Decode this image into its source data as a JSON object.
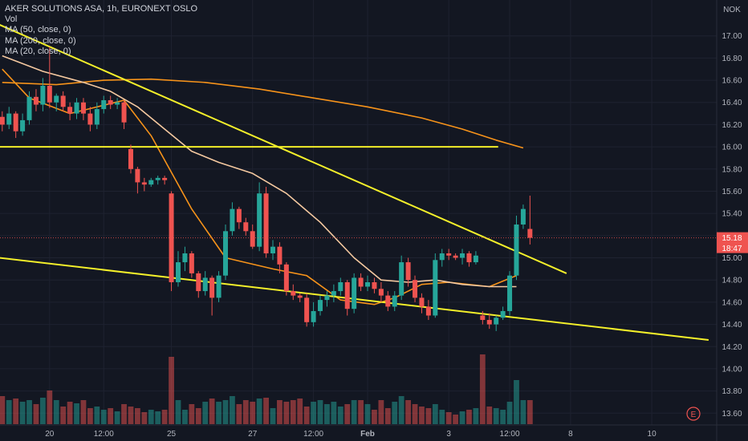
{
  "legend": {
    "title": "AKER SOLUTIONS ASA, 1h, EURONEXT OSLO",
    "vol": "Vol",
    "ma1": "MA (50, close, 0)",
    "ma2": "MA (200, close, 0)",
    "ma3": "MA (20, close, 0)"
  },
  "currency": "NOK",
  "price_tags": {
    "last": "15.18",
    "countdown": "18:47"
  },
  "earnings_marker": "E",
  "colors": {
    "background": "#131722",
    "up": "#26a69a",
    "down": "#ef5350",
    "trendline": "#f4f02a",
    "ma_orange": "#f7931a",
    "ma_light": "#f5c9a0",
    "grid": "#1e2230"
  },
  "chart_data": {
    "type": "candlestick",
    "y_ticks": [
      "13.60",
      "13.80",
      "14.00",
      "14.20",
      "14.40",
      "14.60",
      "14.80",
      "15.00",
      "15.20",
      "15.40",
      "15.60",
      "15.80",
      "16.00",
      "16.20",
      "16.40",
      "16.60",
      "16.80",
      "17.00"
    ],
    "y_range": [
      13.5,
      17.1
    ],
    "x_ticks": [
      {
        "label": "20",
        "i": 7
      },
      {
        "label": "12:00",
        "i": 15
      },
      {
        "label": "25",
        "i": 25
      },
      {
        "label": "27",
        "i": 37
      },
      {
        "label": "12:00",
        "i": 46
      },
      {
        "label": "Feb",
        "i": 54
      },
      {
        "label": "3",
        "i": 66
      },
      {
        "label": "12:00",
        "i": 75
      },
      {
        "label": "8",
        "i": 84
      },
      {
        "label": "10",
        "i": 96
      }
    ],
    "ohlc": [
      [
        16.27,
        16.32,
        16.14,
        16.2
      ],
      [
        16.2,
        16.36,
        16.16,
        16.3
      ],
      [
        16.3,
        16.32,
        16.08,
        16.14
      ],
      [
        16.14,
        16.3,
        16.1,
        16.24
      ],
      [
        16.24,
        16.5,
        16.2,
        16.45
      ],
      [
        16.45,
        16.52,
        16.32,
        16.38
      ],
      [
        16.38,
        16.62,
        16.32,
        16.55
      ],
      [
        16.55,
        16.9,
        16.35,
        16.4
      ],
      [
        16.4,
        16.48,
        16.32,
        16.46
      ],
      [
        16.46,
        16.5,
        16.32,
        16.36
      ],
      [
        16.36,
        16.4,
        16.24,
        16.3
      ],
      [
        16.3,
        16.44,
        16.25,
        16.4
      ],
      [
        16.4,
        16.44,
        16.24,
        16.3
      ],
      [
        16.3,
        16.36,
        16.14,
        16.2
      ],
      [
        16.2,
        16.4,
        16.16,
        16.34
      ],
      [
        16.34,
        16.46,
        16.3,
        16.42
      ],
      [
        16.42,
        16.46,
        16.34,
        16.38
      ],
      [
        16.38,
        16.44,
        16.34,
        16.4
      ],
      [
        16.4,
        16.42,
        16.16,
        16.22
      ],
      [
        15.98,
        16.02,
        15.76,
        15.8
      ],
      [
        15.8,
        15.82,
        15.58,
        15.68
      ],
      [
        15.68,
        15.72,
        15.6,
        15.66
      ],
      [
        15.66,
        15.72,
        15.64,
        15.7
      ],
      [
        15.7,
        15.74,
        15.66,
        15.72
      ],
      [
        15.72,
        15.74,
        15.66,
        15.7
      ],
      [
        15.58,
        15.6,
        14.7,
        14.78
      ],
      [
        14.78,
        15.06,
        14.74,
        14.96
      ],
      [
        14.96,
        15.1,
        14.88,
        15.04
      ],
      [
        15.04,
        15.06,
        14.82,
        14.86
      ],
      [
        14.86,
        14.88,
        14.64,
        14.7
      ],
      [
        14.7,
        14.88,
        14.66,
        14.82
      ],
      [
        14.82,
        14.84,
        14.48,
        14.64
      ],
      [
        14.64,
        14.88,
        14.6,
        14.84
      ],
      [
        14.84,
        15.3,
        14.8,
        15.24
      ],
      [
        15.24,
        15.5,
        15.2,
        15.44
      ],
      [
        15.44,
        15.46,
        15.26,
        15.32
      ],
      [
        15.32,
        15.36,
        15.2,
        15.24
      ],
      [
        15.24,
        15.3,
        15.08,
        15.1
      ],
      [
        15.1,
        15.68,
        15.06,
        15.58
      ],
      [
        15.58,
        15.64,
        15.0,
        15.04
      ],
      [
        15.04,
        15.16,
        14.98,
        15.1
      ],
      [
        15.1,
        15.14,
        14.86,
        14.94
      ],
      [
        14.94,
        14.96,
        14.66,
        14.7
      ],
      [
        14.7,
        14.76,
        14.62,
        14.66
      ],
      [
        14.66,
        14.68,
        14.6,
        14.64
      ],
      [
        14.64,
        14.68,
        14.38,
        14.42
      ],
      [
        14.42,
        14.6,
        14.38,
        14.52
      ],
      [
        14.52,
        14.66,
        14.48,
        14.62
      ],
      [
        14.62,
        14.7,
        14.56,
        14.66
      ],
      [
        14.66,
        14.76,
        14.6,
        14.7
      ],
      [
        14.7,
        14.82,
        14.66,
        14.78
      ],
      [
        14.78,
        14.8,
        14.48,
        14.54
      ],
      [
        14.54,
        14.86,
        14.5,
        14.82
      ],
      [
        14.82,
        14.86,
        14.7,
        14.74
      ],
      [
        14.74,
        14.84,
        14.7,
        14.78
      ],
      [
        14.78,
        14.82,
        14.68,
        14.72
      ],
      [
        14.72,
        14.78,
        14.6,
        14.66
      ],
      [
        14.66,
        14.7,
        14.52,
        14.56
      ],
      [
        14.56,
        14.7,
        14.52,
        14.66
      ],
      [
        14.66,
        15.02,
        14.62,
        14.96
      ],
      [
        14.96,
        15.0,
        14.74,
        14.8
      ],
      [
        14.8,
        14.84,
        14.6,
        14.64
      ],
      [
        14.64,
        14.68,
        14.5,
        14.56
      ],
      [
        14.56,
        14.62,
        14.44,
        14.48
      ],
      [
        14.48,
        15.04,
        14.46,
        14.98
      ],
      [
        14.98,
        15.08,
        14.92,
        15.04
      ],
      [
        15.04,
        15.08,
        14.98,
        15.02
      ],
      [
        15.02,
        15.04,
        14.98,
        15.0
      ],
      [
        15.0,
        15.08,
        14.94,
        15.04
      ],
      [
        15.04,
        15.06,
        14.92,
        14.96
      ],
      [
        14.96,
        15.06,
        14.94,
        15.02
      ],
      [
        14.48,
        14.52,
        14.4,
        14.44
      ],
      [
        14.44,
        14.5,
        14.36,
        14.4
      ],
      [
        14.4,
        14.48,
        14.34,
        14.46
      ],
      [
        14.46,
        14.56,
        14.44,
        14.52
      ],
      [
        14.52,
        14.88,
        14.48,
        14.84
      ],
      [
        14.84,
        15.38,
        14.8,
        15.3
      ],
      [
        15.3,
        15.48,
        15.26,
        15.44
      ],
      [
        15.26,
        15.56,
        15.12,
        15.18
      ]
    ],
    "volume": [
      0.35,
      0.3,
      0.32,
      0.28,
      0.3,
      0.25,
      0.33,
      0.42,
      0.3,
      0.22,
      0.28,
      0.26,
      0.3,
      0.2,
      0.22,
      0.18,
      0.2,
      0.16,
      0.25,
      0.22,
      0.2,
      0.15,
      0.18,
      0.16,
      0.18,
      0.84,
      0.3,
      0.18,
      0.25,
      0.2,
      0.28,
      0.32,
      0.28,
      0.3,
      0.35,
      0.25,
      0.3,
      0.28,
      0.32,
      0.33,
      0.2,
      0.3,
      0.28,
      0.3,
      0.32,
      0.22,
      0.28,
      0.3,
      0.25,
      0.28,
      0.22,
      0.25,
      0.3,
      0.3,
      0.25,
      0.18,
      0.3,
      0.2,
      0.28,
      0.35,
      0.3,
      0.25,
      0.22,
      0.2,
      0.25,
      0.18,
      0.15,
      0.12,
      0.16,
      0.18,
      0.2,
      0.87,
      0.22,
      0.2,
      0.18,
      0.28,
      0.55,
      0.3,
      0.3
    ],
    "series": [
      {
        "name": "MA (50, close, 0)",
        "style": "ma_orange",
        "points": [
          [
            0,
            16.7
          ],
          [
            4,
            16.44
          ],
          [
            10,
            16.3
          ],
          [
            18,
            16.42
          ],
          [
            22,
            16.1
          ],
          [
            28,
            15.44
          ],
          [
            33,
            15.0
          ],
          [
            40,
            14.9
          ],
          [
            45,
            14.84
          ],
          [
            50,
            14.62
          ],
          [
            55,
            14.58
          ],
          [
            58,
            14.64
          ],
          [
            62,
            14.76
          ],
          [
            66,
            14.78
          ],
          [
            72,
            14.74
          ],
          [
            76,
            14.84
          ]
        ]
      },
      {
        "name": "MA (200, close, 0)",
        "style": "ma_orange",
        "points": [
          [
            0,
            16.58
          ],
          [
            8,
            16.56
          ],
          [
            15,
            16.6
          ],
          [
            22,
            16.61
          ],
          [
            30,
            16.58
          ],
          [
            38,
            16.52
          ],
          [
            46,
            16.44
          ],
          [
            54,
            16.36
          ],
          [
            62,
            16.26
          ],
          [
            68,
            16.16
          ],
          [
            73,
            16.06
          ],
          [
            77,
            15.99
          ]
        ]
      },
      {
        "name": "MA (20, close, 0)",
        "style": "ma_light",
        "points": [
          [
            0,
            16.82
          ],
          [
            6,
            16.68
          ],
          [
            12,
            16.58
          ],
          [
            16,
            16.5
          ],
          [
            20,
            16.36
          ],
          [
            24,
            16.16
          ],
          [
            28,
            15.96
          ],
          [
            32,
            15.86
          ],
          [
            37,
            15.76
          ],
          [
            42,
            15.58
          ],
          [
            47,
            15.32
          ],
          [
            52,
            15.0
          ],
          [
            56,
            14.8
          ],
          [
            60,
            14.78
          ],
          [
            64,
            14.8
          ],
          [
            68,
            14.76
          ],
          [
            72,
            14.74
          ],
          [
            76,
            14.74
          ]
        ]
      }
    ],
    "trendlines": [
      {
        "from": [
          -0.4,
          17.1
        ],
        "to": [
          83.4,
          14.86
        ]
      },
      {
        "from": [
          -0.4,
          16.0
        ],
        "to": [
          73.3,
          16.0
        ]
      },
      {
        "from": [
          -0.4,
          15.0
        ],
        "to": [
          104.4,
          14.26
        ]
      }
    ]
  }
}
